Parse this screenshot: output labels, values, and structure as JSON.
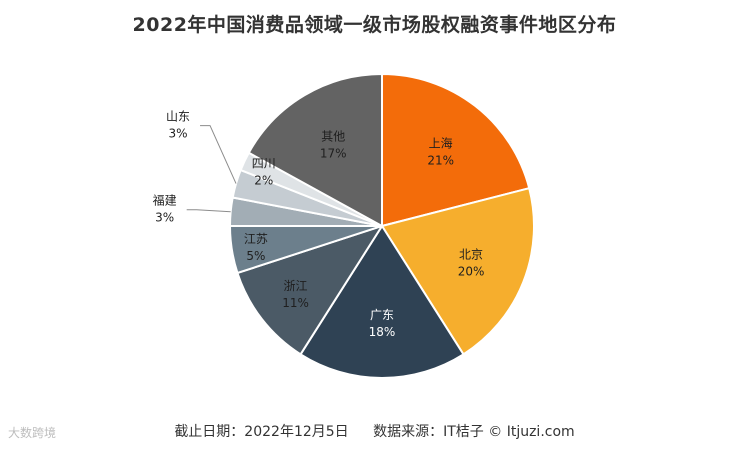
{
  "chart_data": {
    "type": "pie",
    "title": "2022年中国消费品领域一级市场股权融资事件地区分布",
    "slices": [
      {
        "label": "上海",
        "value": 21,
        "display": "21%",
        "color": "#f36c0a",
        "text": "dark"
      },
      {
        "label": "北京",
        "value": 20,
        "display": "20%",
        "color": "#f6ae2d",
        "text": "dark"
      },
      {
        "label": "广东",
        "value": 18,
        "display": "18%",
        "color": "#2f4254",
        "text": "light"
      },
      {
        "label": "浙江",
        "value": 11,
        "display": "11%",
        "color": "#4b5a66",
        "text": "dark"
      },
      {
        "label": "江苏",
        "value": 5,
        "display": "5%",
        "color": "#6c7f8c",
        "text": "dark"
      },
      {
        "label": "福建",
        "value": 3,
        "display": "3%",
        "color": "#a2adb5",
        "text": "dark"
      },
      {
        "label": "山东",
        "value": 3,
        "display": "3%",
        "color": "#c5ccd2",
        "text": "dark"
      },
      {
        "label": "四川",
        "value": 2,
        "display": "2%",
        "color": "#dfe3e6",
        "text": "dark"
      },
      {
        "label": "其他",
        "value": 17,
        "display": "17%",
        "color": "#636363",
        "text": "dark"
      }
    ]
  },
  "footer": {
    "date_text": "截止日期：2022年12月5日",
    "source_text": "数据来源：IT桔子 © Itjuzi.com"
  },
  "watermark": {
    "text": "大数跨境"
  }
}
